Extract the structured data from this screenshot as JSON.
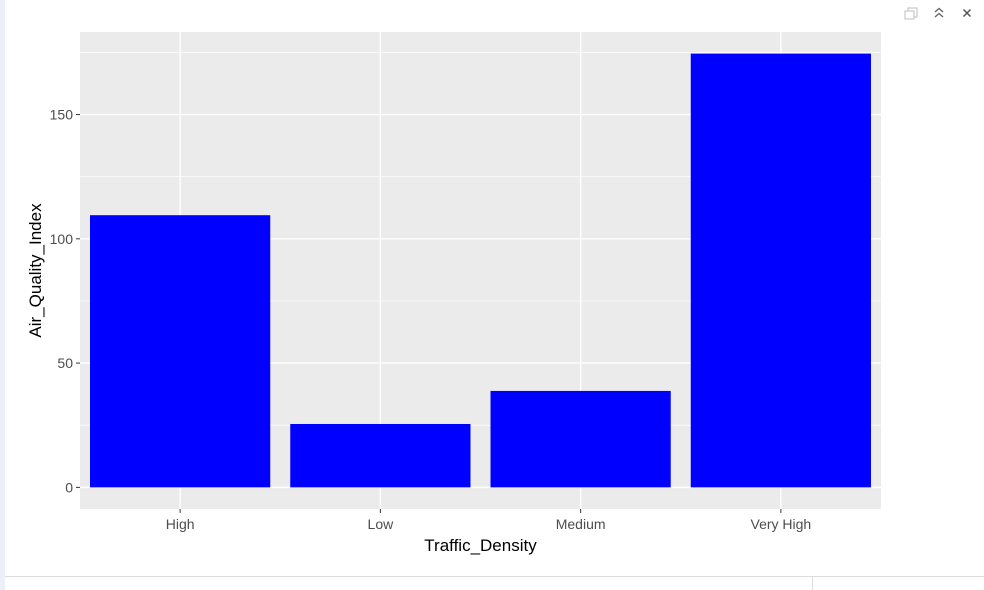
{
  "window": {
    "controls": [
      {
        "icon": "popout-icon"
      },
      {
        "icon": "maximize-icon"
      },
      {
        "icon": "close-icon"
      }
    ]
  },
  "colors": {
    "panel_bg": "#ebebeb",
    "grid": "#ffffff",
    "bar_fill": "#0000ff",
    "tick_text": "#4d4d4d",
    "title_text": "#000000"
  },
  "chart_data": {
    "type": "bar",
    "categories": [
      "High",
      "Low",
      "Medium",
      "Very High"
    ],
    "values": [
      109.5,
      25.5,
      38.8,
      174.5
    ],
    "xlabel": "Traffic_Density",
    "ylabel": "Air_Quality_Index",
    "ylim": [
      -8.7,
      183.2
    ],
    "yticks": [
      0,
      50,
      100,
      150
    ],
    "yticklabels": [
      "0",
      "50",
      "100",
      "150"
    ],
    "grid": true
  }
}
